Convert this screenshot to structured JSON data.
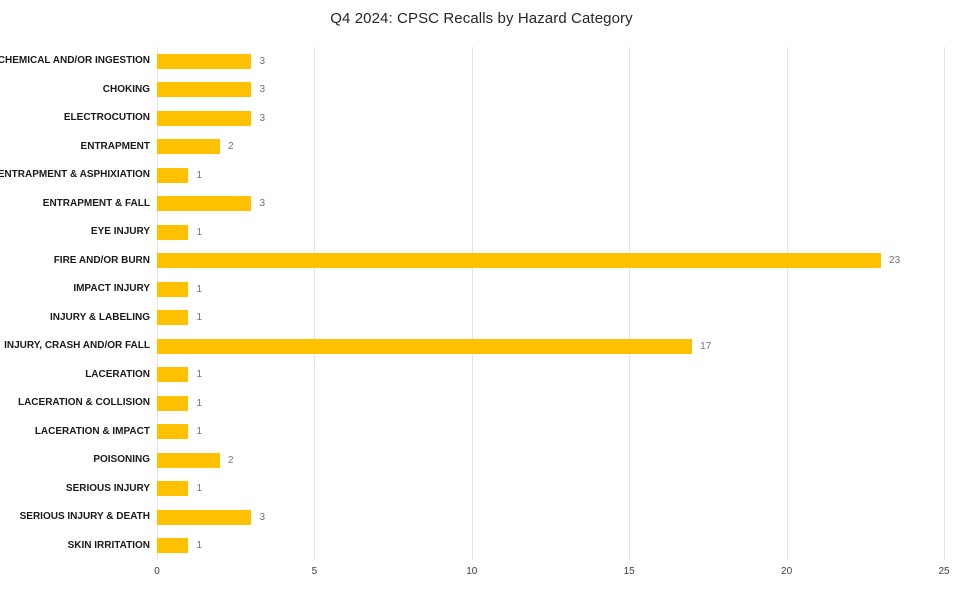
{
  "chart_data": {
    "type": "bar",
    "orientation": "horizontal",
    "title": "Q4 2024: CPSC Recalls by Hazard Category",
    "categories": [
      "CHEMICAL AND/OR INGESTION",
      "CHOKING",
      "ELECTROCUTION",
      "ENTRAPMENT",
      "ENTRAPMENT & ASPHIXIATION",
      "ENTRAPMENT & FALL",
      "EYE INJURY",
      "FIRE AND/OR BURN",
      "IMPACT INJURY",
      "INJURY & LABELING",
      "INJURY, CRASH AND/OR FALL",
      "LACERATION",
      "LACERATION & COLLISION",
      "LACERATION & IMPACT",
      "POISONING",
      "SERIOUS INJURY",
      "SERIOUS INJURY & DEATH",
      "SKIN IRRITATION"
    ],
    "values": [
      3,
      3,
      3,
      2,
      1,
      3,
      1,
      23,
      1,
      1,
      17,
      1,
      1,
      1,
      2,
      1,
      3,
      1
    ],
    "data_labels_shown": true,
    "xlabel": "",
    "ylabel": "",
    "xlim": [
      0,
      25
    ],
    "x_ticks": [
      0,
      5,
      10,
      15,
      20,
      25
    ],
    "grid": true,
    "legend_position": "none",
    "bar_color": "#FFC000",
    "value_label_color": "#7D6D72",
    "gridline_color": "#EBE0E5",
    "title_color": "#262626",
    "axis_tick_color": "#404040",
    "category_label_color": "#1A1A1A"
  }
}
